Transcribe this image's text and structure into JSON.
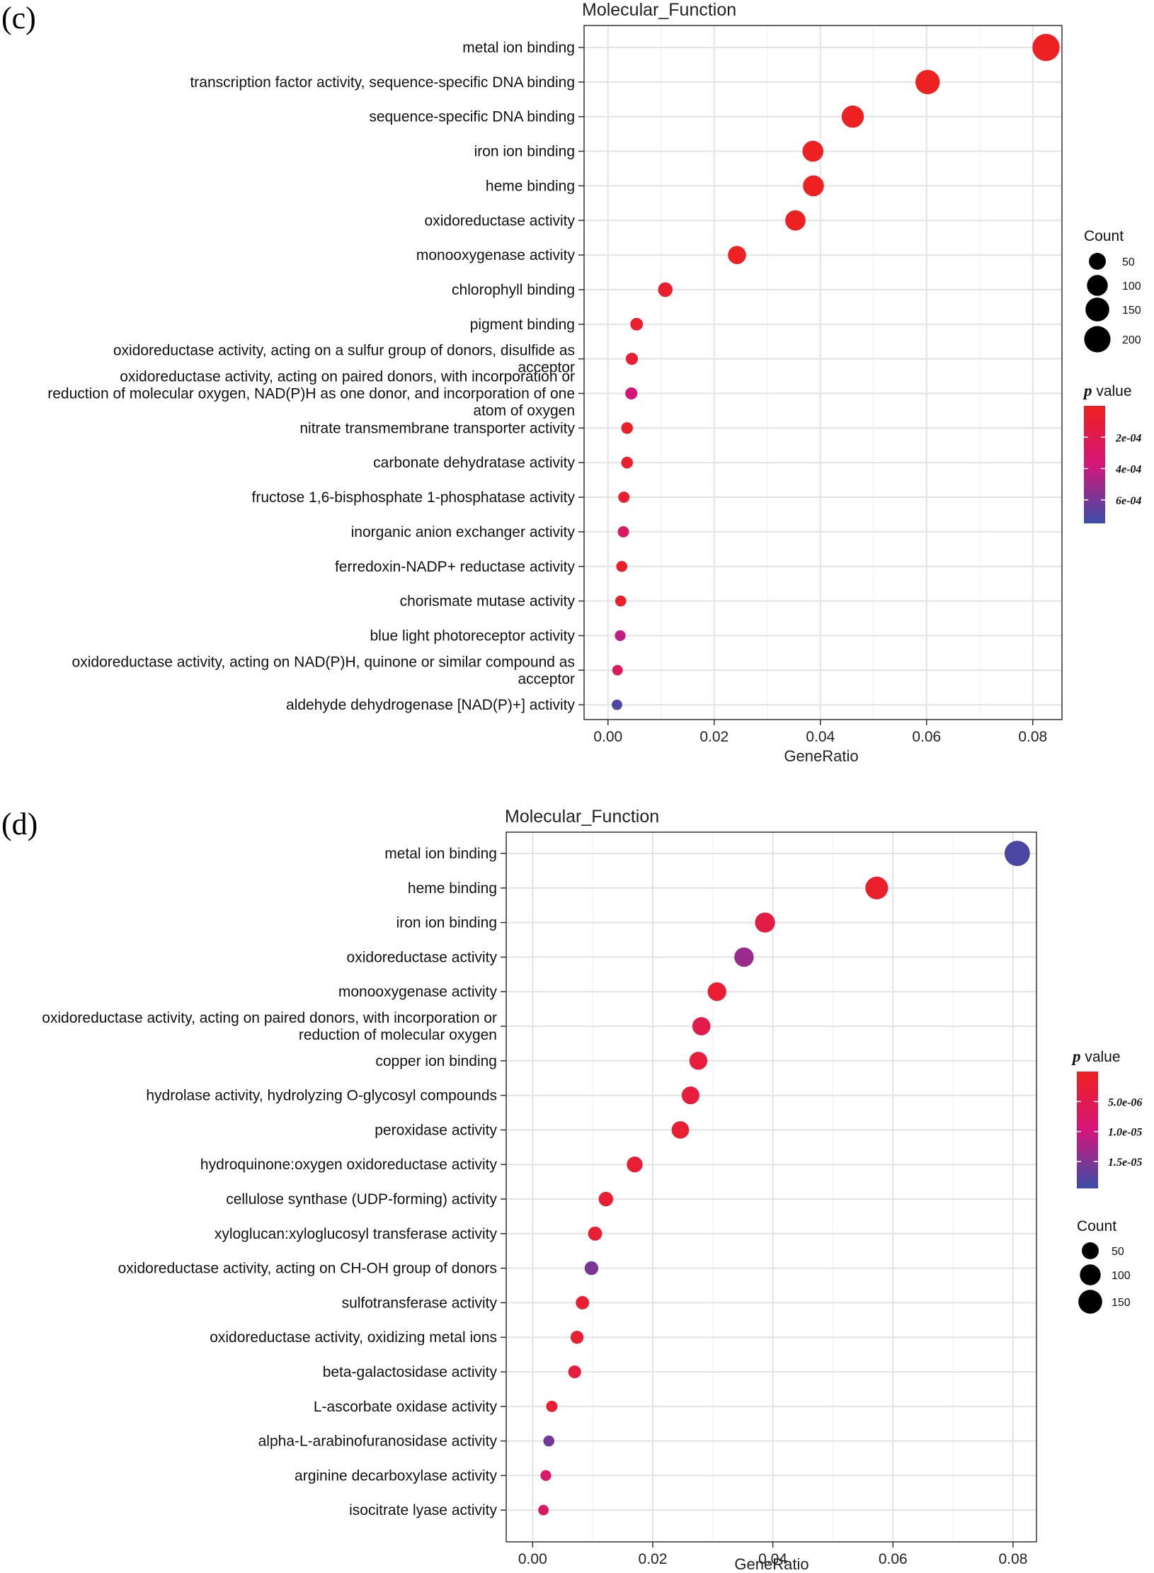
{
  "chart_data": [
    {
      "type": "scatter",
      "panel": "(c)",
      "title": "Molecular_Function",
      "xlabel": "GeneRatio",
      "ylabel": "",
      "xlim": [
        -0.0045,
        0.0855
      ],
      "xticks": [
        "0.00",
        "0.02",
        "0.04",
        "0.06",
        "0.08"
      ],
      "xtick_values": [
        0,
        0.02,
        0.04,
        0.06,
        0.08
      ],
      "grid": true,
      "legend_position": "right",
      "categories": [
        "metal ion binding",
        "transcription factor activity, sequence-specific DNA binding",
        "sequence-specific DNA binding",
        "iron ion binding",
        "heme binding",
        "oxidoreductase activity",
        "monooxygenase activity",
        "chlorophyll binding",
        "pigment binding",
        "oxidoreductase activity, acting on a sulfur group of donors, disulfide as acceptor",
        "oxidoreductase activity, acting on paired donors, with incorporation or reduction of molecular oxygen, NAD(P)H as one donor, and incorporation of one atom of oxygen",
        "nitrate transmembrane transporter activity",
        "carbonate dehydratase activity",
        "fructose 1,6-bisphosphate 1-phosphatase activity",
        "inorganic anion exchanger activity",
        "ferredoxin-NADP+ reductase activity",
        "chorismate mutase activity",
        "blue light photoreceptor activity",
        "oxidoreductase activity, acting on NAD(P)H, quinone or similar compound as acceptor",
        "aldehyde dehydrogenase [NAD(P)+] activity"
      ],
      "label_lines": [
        [
          "metal ion binding"
        ],
        [
          "transcription factor activity, sequence-specific DNA binding"
        ],
        [
          "sequence-specific DNA binding"
        ],
        [
          "iron ion binding"
        ],
        [
          "heme binding"
        ],
        [
          "oxidoreductase activity"
        ],
        [
          "monooxygenase activity"
        ],
        [
          "chlorophyll binding"
        ],
        [
          "pigment binding"
        ],
        [
          "oxidoreductase activity, acting on a sulfur group of donors, disulfide as",
          "acceptor"
        ],
        [
          "oxidoreductase activity, acting on paired donors, with incorporation or",
          "reduction of molecular oxygen, NAD(P)H as one donor, and incorporation of one",
          "atom of oxygen"
        ],
        [
          "nitrate transmembrane transporter activity"
        ],
        [
          "carbonate dehydratase activity"
        ],
        [
          "fructose 1,6-bisphosphate 1-phosphatase activity"
        ],
        [
          "inorganic anion exchanger activity"
        ],
        [
          "ferredoxin-NADP+ reductase activity"
        ],
        [
          "chorismate mutase activity"
        ],
        [
          "blue light photoreceptor activity"
        ],
        [
          "oxidoreductase activity, acting on NAD(P)H, quinone or similar compound as",
          "acceptor"
        ],
        [
          "aldehyde dehydrogenase [NAD(P)+] activity"
        ]
      ],
      "gene_ratio": [
        0.0825,
        0.0602,
        0.0461,
        0.0386,
        0.0387,
        0.0353,
        0.0243,
        0.0108,
        0.0054,
        0.0045,
        0.0044,
        0.0036,
        0.0036,
        0.003,
        0.0029,
        0.0026,
        0.0024,
        0.0023,
        0.0018,
        0.0017
      ],
      "count": [
        220,
        160,
        122,
        102,
        102,
        93,
        64,
        28,
        15,
        12,
        12,
        10,
        10,
        8,
        8,
        7,
        7,
        6,
        5,
        5
      ],
      "p_value": [
        1e-05,
        1e-05,
        1e-05,
        1e-05,
        1e-05,
        1e-05,
        1e-05,
        5e-05,
        6e-05,
        7e-05,
        0.00036,
        4e-05,
        5e-05,
        6e-05,
        0.00028,
        4e-05,
        5e-05,
        0.00042,
        0.00025,
        0.0007
      ],
      "size_legend": {
        "title": "Count",
        "breaks": [
          50,
          100,
          150,
          200
        ],
        "labels": [
          "50",
          "100",
          "150",
          "200"
        ]
      },
      "color_legend": {
        "title_italic": "p",
        "title_rest": " value",
        "range": [
          0.0,
          0.00075
        ],
        "breaks": [
          0.0002,
          0.0004,
          0.0006
        ],
        "labels": [
          "2e-04",
          "4e-04",
          "6e-04"
        ]
      },
      "colors": {
        "low": "#ee2020",
        "mid": "#d4167a",
        "high": "#3a4da8"
      }
    },
    {
      "type": "scatter",
      "panel": "(d)",
      "title": "Molecular_Function",
      "xlabel": "GeneRatio",
      "ylabel": "",
      "xlim": [
        -0.0044,
        0.0839
      ],
      "xticks": [
        "0.00",
        "0.02",
        "0.04",
        "0.06",
        "0.08"
      ],
      "xtick_values": [
        0,
        0.02,
        0.04,
        0.06,
        0.08
      ],
      "grid": true,
      "legend_position": "right",
      "categories": [
        "metal ion binding",
        "heme binding",
        "iron ion binding",
        "oxidoreductase activity",
        "monooxygenase activity",
        "oxidoreductase activity, acting on paired donors, with incorporation or reduction of molecular oxygen",
        "copper ion binding",
        "hydrolase activity, hydrolyzing O-glycosyl compounds",
        "peroxidase activity",
        "hydroquinone:oxygen oxidoreductase activity",
        "cellulose synthase (UDP-forming) activity",
        "xyloglucan:xyloglucosyl transferase activity",
        "oxidoreductase activity, acting on CH-OH group of donors",
        "sulfotransferase activity",
        "oxidoreductase activity, oxidizing metal ions",
        "beta-galactosidase activity",
        "L-ascorbate oxidase activity",
        "alpha-L-arabinofuranosidase activity",
        "arginine decarboxylase activity",
        "isocitrate lyase activity"
      ],
      "label_lines": [
        [
          "metal ion binding"
        ],
        [
          "heme binding"
        ],
        [
          "iron ion binding"
        ],
        [
          "oxidoreductase activity"
        ],
        [
          "monooxygenase activity"
        ],
        [
          "oxidoreductase activity, acting on paired donors, with incorporation or",
          "reduction of molecular oxygen"
        ],
        [
          "copper ion binding"
        ],
        [
          "hydrolase activity, hydrolyzing O-glycosyl compounds"
        ],
        [
          "peroxidase activity"
        ],
        [
          "hydroquinone:oxygen oxidoreductase activity"
        ],
        [
          "cellulose synthase (UDP-forming) activity"
        ],
        [
          "xyloglucan:xyloglucosyl transferase activity"
        ],
        [
          "oxidoreductase activity, acting on CH-OH group of donors"
        ],
        [
          "sulfotransferase activity"
        ],
        [
          "oxidoreductase activity, oxidizing metal ions"
        ],
        [
          "beta-galactosidase activity"
        ],
        [
          "L-ascorbate oxidase activity"
        ],
        [
          "alpha-L-arabinofuranosidase activity"
        ],
        [
          "arginine decarboxylase activity"
        ],
        [
          "isocitrate lyase activity"
        ]
      ],
      "gene_ratio": [
        0.0807,
        0.0573,
        0.0387,
        0.0352,
        0.0307,
        0.0281,
        0.0276,
        0.0263,
        0.0246,
        0.017,
        0.0122,
        0.0104,
        0.0098,
        0.0083,
        0.0074,
        0.007,
        0.0032,
        0.0027,
        0.0022,
        0.0018
      ],
      "count": [
        180,
        130,
        88,
        80,
        70,
        64,
        62,
        60,
        56,
        39,
        28,
        24,
        22,
        19,
        17,
        16,
        8,
        7,
        6,
        5
      ],
      "p_value": [
        1.85e-05,
        1e-06,
        4e-06,
        1.35e-05,
        2e-06,
        5e-06,
        3e-06,
        3e-06,
        2e-06,
        2e-06,
        2e-06,
        2e-06,
        1.55e-05,
        2e-06,
        2e-06,
        3e-06,
        2e-06,
        1.6e-05,
        8e-06,
        7e-06
      ],
      "size_legend": {
        "title": "Count",
        "breaks": [
          50,
          100,
          150
        ],
        "labels": [
          "50",
          "100",
          "150"
        ]
      },
      "color_legend": {
        "title_italic": "p",
        "title_rest": " value",
        "range": [
          0.0,
          1.95e-05
        ],
        "breaks": [
          5e-06,
          1e-05,
          1.5e-05
        ],
        "labels": [
          "5.0e-06",
          "1.0e-05",
          "1.5e-05"
        ]
      },
      "colors": {
        "low": "#ee2020",
        "mid": "#d4167a",
        "high": "#3a4da8"
      }
    }
  ]
}
